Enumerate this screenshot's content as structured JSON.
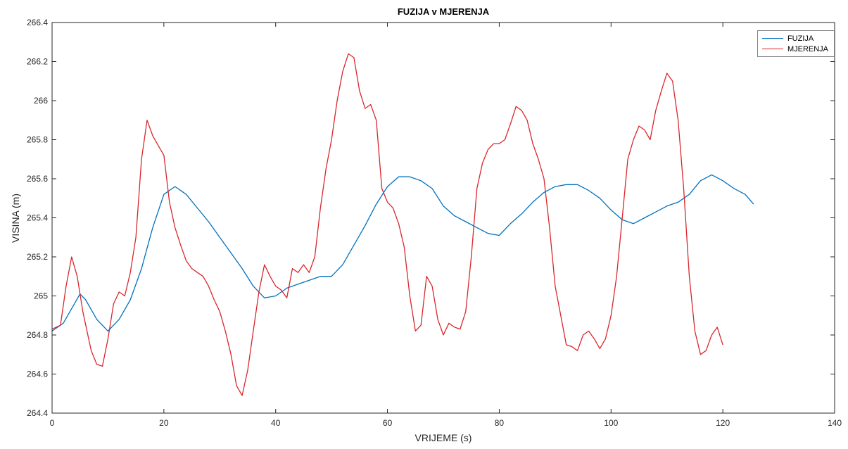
{
  "chart_data": {
    "type": "line",
    "title": "FUZIJA v MJERENJA",
    "xlabel": "VRIJEME (s)",
    "ylabel": "VISINA (m)",
    "xlim": [
      0,
      140
    ],
    "ylim": [
      264.4,
      266.4
    ],
    "xticks": [
      0,
      20,
      40,
      60,
      80,
      100,
      120,
      140
    ],
    "yticks": [
      264.4,
      264.6,
      264.8,
      265,
      265.2,
      265.4,
      265.6,
      265.8,
      266,
      266.2,
      266.4
    ],
    "ytick_labels": [
      "264.4",
      "264.6",
      "264.8",
      "265",
      "265.2",
      "265.4",
      "265.6",
      "265.8",
      "266",
      "266.2",
      "266.4"
    ],
    "grid": false,
    "legend_position": "top-right",
    "series": [
      {
        "name": "FUZIJA",
        "color": "#0072BD",
        "x": [
          0,
          2,
          4,
          5,
          6,
          8,
          10,
          12,
          14,
          16,
          18,
          20,
          22,
          24,
          26,
          28,
          30,
          32,
          34,
          36,
          38,
          40,
          42,
          44,
          46,
          48,
          50,
          52,
          54,
          56,
          58,
          60,
          62,
          64,
          66,
          68,
          70,
          72,
          74,
          76,
          78,
          80,
          82,
          84,
          86,
          88,
          90,
          92,
          94,
          96,
          98,
          100,
          102,
          104,
          106,
          108,
          110,
          112,
          114,
          116,
          118,
          120,
          122,
          124,
          125.5
        ],
        "y": [
          264.82,
          264.86,
          264.96,
          265.01,
          264.98,
          264.88,
          264.82,
          264.88,
          264.98,
          265.14,
          265.35,
          265.52,
          265.56,
          265.52,
          265.45,
          265.38,
          265.3,
          265.22,
          265.14,
          265.05,
          264.99,
          265.0,
          265.04,
          265.06,
          265.08,
          265.1,
          265.1,
          265.16,
          265.26,
          265.36,
          265.47,
          265.56,
          265.61,
          265.61,
          265.59,
          265.55,
          265.46,
          265.41,
          265.38,
          265.35,
          265.32,
          265.31,
          265.37,
          265.42,
          265.48,
          265.53,
          265.56,
          265.57,
          265.57,
          265.54,
          265.5,
          265.44,
          265.39,
          265.37,
          265.4,
          265.43,
          265.46,
          265.48,
          265.52,
          265.59,
          265.62,
          265.59,
          265.55,
          265.52,
          265.47
        ]
      },
      {
        "name": "MJERENJA",
        "color": "#D9262C",
        "x": [
          0,
          1.5,
          2.5,
          3.5,
          4.5,
          5.5,
          7,
          8,
          9,
          10,
          11,
          12,
          13,
          14,
          15,
          16,
          17,
          18,
          19,
          20,
          21,
          22,
          23,
          24,
          25,
          26,
          27,
          28,
          29,
          30,
          31,
          32,
          33,
          34,
          35,
          36,
          37,
          38,
          39,
          40,
          41,
          42,
          43,
          44,
          45,
          46,
          47,
          48,
          49,
          50,
          51,
          52,
          53,
          54,
          55,
          56,
          57,
          58,
          59,
          60,
          61,
          62,
          63,
          64,
          65,
          66,
          67,
          68,
          69,
          70,
          71,
          72,
          73,
          74,
          75,
          76,
          77,
          78,
          79,
          80,
          81,
          82,
          83,
          84,
          85,
          86,
          87,
          88,
          89,
          90,
          91,
          92,
          93,
          94,
          95,
          96,
          97,
          98,
          99,
          100,
          101,
          102,
          103,
          104,
          105,
          106,
          107,
          108,
          109,
          110,
          111,
          112,
          113,
          114,
          115,
          116,
          117,
          118,
          119,
          120
        ],
        "y": [
          264.83,
          264.85,
          265.05,
          265.2,
          265.1,
          264.92,
          264.72,
          264.65,
          264.64,
          264.78,
          264.96,
          265.02,
          265.0,
          265.12,
          265.3,
          265.7,
          265.9,
          265.82,
          265.77,
          265.72,
          265.48,
          265.35,
          265.26,
          265.18,
          265.14,
          265.12,
          265.1,
          265.05,
          264.98,
          264.92,
          264.82,
          264.7,
          264.54,
          264.49,
          264.62,
          264.82,
          265.02,
          265.16,
          265.1,
          265.05,
          265.03,
          264.99,
          265.14,
          265.12,
          265.16,
          265.12,
          265.2,
          265.45,
          265.65,
          265.8,
          266.0,
          266.15,
          266.24,
          266.22,
          266.05,
          265.96,
          265.98,
          265.9,
          265.55,
          265.48,
          265.45,
          265.37,
          265.25,
          265.0,
          264.82,
          264.85,
          265.1,
          265.05,
          264.88,
          264.8,
          264.86,
          264.84,
          264.83,
          264.92,
          265.2,
          265.55,
          265.68,
          265.75,
          265.78,
          265.78,
          265.8,
          265.88,
          265.97,
          265.95,
          265.9,
          265.78,
          265.7,
          265.6,
          265.35,
          265.05,
          264.9,
          264.75,
          264.74,
          264.72,
          264.8,
          264.82,
          264.78,
          264.73,
          264.78,
          264.9,
          265.1,
          265.4,
          265.7,
          265.8,
          265.87,
          265.85,
          265.8,
          265.95,
          266.05,
          266.14,
          266.1,
          265.9,
          265.55,
          265.1,
          264.82,
          264.7,
          264.72,
          264.8,
          264.84,
          264.75
        ]
      }
    ]
  }
}
